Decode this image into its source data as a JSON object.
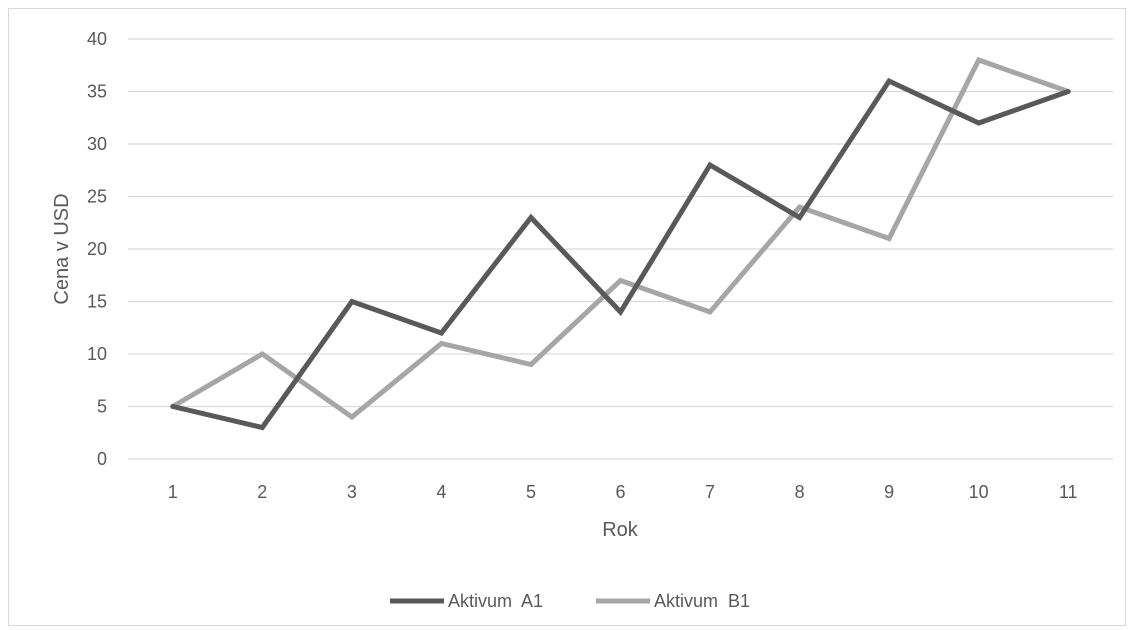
{
  "chart_data": {
    "type": "line",
    "xlabel": "Rok",
    "ylabel": "Cena v USD",
    "categories": [
      "1",
      "2",
      "3",
      "4",
      "5",
      "6",
      "7",
      "8",
      "9",
      "10",
      "11"
    ],
    "ylim": [
      0,
      40
    ],
    "yticks": [
      "0",
      "5",
      "10",
      "15",
      "20",
      "25",
      "30",
      "35",
      "40"
    ],
    "grid": "horizontal",
    "legend_position": "bottom",
    "series": [
      {
        "name": "Aktivum  A1",
        "color": "#595959",
        "values": [
          5,
          3,
          15,
          12,
          23,
          14,
          28,
          23,
          36,
          32,
          35
        ]
      },
      {
        "name": "Aktivum  B1",
        "color": "#a6a6a6",
        "values": [
          5,
          10,
          4,
          11,
          9,
          17,
          14,
          24,
          21,
          38,
          35
        ]
      }
    ]
  }
}
